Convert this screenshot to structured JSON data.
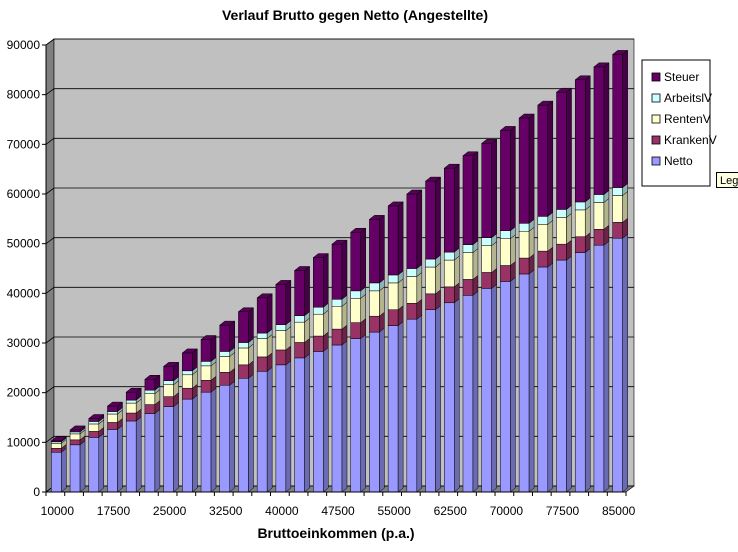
{
  "chart_data": {
    "type": "bar",
    "stacked": true,
    "title": "Verlauf Brutto gegen Netto (Angestellte)",
    "xlabel": "Bruttoeinkommen (p.a.)",
    "ylabel": "",
    "ylim": [
      0,
      90000
    ],
    "ytick_step": 10000,
    "grid": true,
    "legend_position": "right",
    "x": [
      10000,
      12500,
      15000,
      17500,
      20000,
      22500,
      25000,
      27500,
      30000,
      32500,
      35000,
      37500,
      40000,
      42500,
      45000,
      47500,
      50000,
      52500,
      55000,
      57500,
      60000,
      62500,
      65000,
      67500,
      70000,
      72500,
      75000,
      77500,
      80000,
      82500,
      85000
    ],
    "xtick_labels": [
      "10000",
      "17500",
      "25000",
      "32500",
      "40000",
      "47500",
      "55000",
      "62500",
      "70000",
      "77500",
      "85000"
    ],
    "series": [
      {
        "name": "Netto",
        "color": "#9999ff",
        "values": [
          8000,
          9500,
          11000,
          12600,
          14300,
          15800,
          17200,
          18700,
          20100,
          21500,
          22900,
          24300,
          25600,
          27000,
          28300,
          29600,
          30900,
          32200,
          33500,
          34800,
          36700,
          38100,
          39600,
          41000,
          42400,
          43900,
          45300,
          46700,
          48200,
          49700,
          51100
        ]
      },
      {
        "name": "KrankenV",
        "color": "#993366",
        "values": [
          800,
          1000,
          1200,
          1400,
          1600,
          1800,
          2000,
          2200,
          2400,
          2600,
          2700,
          2900,
          3000,
          3100,
          3100,
          3200,
          3200,
          3200,
          3200,
          3200,
          3200,
          3200,
          3200,
          3200,
          3200,
          3200,
          3200,
          3200,
          3200,
          3200,
          3200
        ]
      },
      {
        "name": "RentenV",
        "color": "#ffffcc",
        "values": [
          1000,
          1200,
          1500,
          1700,
          2000,
          2200,
          2400,
          2700,
          2900,
          3200,
          3400,
          3700,
          3900,
          4100,
          4400,
          4600,
          4900,
          5100,
          5400,
          5400,
          5400,
          5400,
          5400,
          5400,
          5400,
          5400,
          5400,
          5400,
          5400,
          5400,
          5400
        ]
      },
      {
        "name": "ArbeitslV",
        "color": "#ccffff",
        "values": [
          300,
          400,
          500,
          500,
          600,
          700,
          800,
          800,
          900,
          1000,
          1100,
          1100,
          1200,
          1300,
          1400,
          1400,
          1500,
          1600,
          1600,
          1600,
          1600,
          1600,
          1600,
          1600,
          1600,
          1600,
          1600,
          1600,
          1600,
          1600,
          1600
        ]
      },
      {
        "name": "Steuer",
        "color": "#660066",
        "values": [
          200,
          400,
          600,
          1100,
          1600,
          2200,
          2900,
          3600,
          4400,
          5300,
          6200,
          7100,
          8100,
          9100,
          10000,
          11100,
          11800,
          12800,
          13900,
          15000,
          15700,
          16900,
          17900,
          19000,
          20200,
          21200,
          22400,
          23600,
          24600,
          25700,
          26800
        ]
      }
    ]
  },
  "tooltip_text": "Leg"
}
